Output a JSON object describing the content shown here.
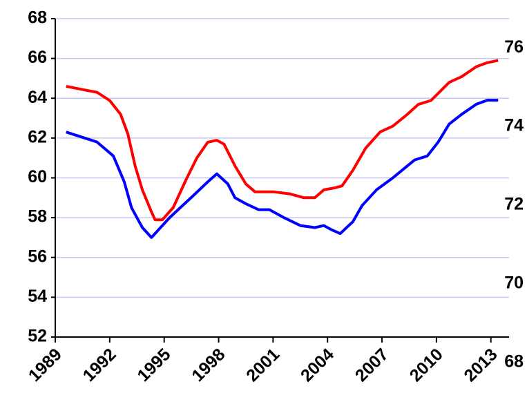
{
  "chart_data": {
    "type": "line",
    "xlim": [
      1989,
      2014
    ],
    "xticks": [
      1989,
      1992,
      1995,
      1998,
      2001,
      2004,
      2007,
      2010,
      2013
    ],
    "ylim": [
      52,
      68
    ],
    "yticks": [
      52,
      54,
      56,
      58,
      60,
      62,
      64,
      66,
      68
    ],
    "y2lim": [
      68.65,
      76.74
    ],
    "y2ticks": [
      68,
      70,
      72,
      74,
      76
    ],
    "grid": true,
    "grid_color": "#c8c8f0",
    "series": [
      {
        "color": "#0000ff",
        "x": [
          1989.6,
          1991.3,
          1992.2,
          1992.8,
          1993.2,
          1993.8,
          1994.3,
          1995.3,
          1996.6,
          1997.4,
          1997.9,
          1998.5,
          1998.9,
          1999.5,
          2000.2,
          2000.8,
          2001.6,
          2002.5,
          2003.3,
          2003.8,
          2004.2,
          2004.7,
          2005.4,
          2005.9,
          2006.7,
          2007.6,
          2008.8,
          2009.5,
          2010.1,
          2010.7,
          2011.4,
          2012.2,
          2012.8,
          2013.4
        ],
        "values": [
          62.3,
          61.8,
          61.1,
          59.8,
          58.5,
          57.5,
          57.0,
          58.0,
          59.1,
          59.8,
          60.2,
          59.7,
          59.0,
          58.7,
          58.4,
          58.4,
          58.0,
          57.6,
          57.5,
          57.6,
          57.4,
          57.2,
          57.8,
          58.6,
          59.4,
          60.0,
          60.9,
          61.1,
          61.8,
          62.7,
          63.2,
          63.7,
          63.9,
          63.9
        ]
      },
      {
        "color": "#ff0000",
        "axis": "y2",
        "x": [
          1989.6,
          1990.7,
          1991.3,
          1992.0,
          1992.6,
          1993.0,
          1993.4,
          1993.8,
          1994.3,
          1994.5,
          1994.9,
          1995.5,
          1996.2,
          1996.8,
          1997.4,
          1997.9,
          1998.3,
          1998.9,
          1999.5,
          2000.0,
          2001.0,
          2001.9,
          2002.7,
          2003.3,
          2003.8,
          2004.4,
          2004.8,
          2005.4,
          2006.1,
          2006.9,
          2007.6,
          2008.4,
          2009.0,
          2009.7,
          2010.7,
          2011.4,
          2012.2,
          2012.8,
          2013.4
        ],
        "values": [
          75.02,
          74.92,
          74.87,
          74.66,
          74.31,
          73.81,
          73.0,
          72.39,
          71.83,
          71.63,
          71.63,
          71.94,
          72.64,
          73.2,
          73.6,
          73.65,
          73.55,
          73.0,
          72.54,
          72.34,
          72.34,
          72.29,
          72.19,
          72.19,
          72.39,
          72.44,
          72.49,
          72.89,
          73.45,
          73.86,
          74.01,
          74.31,
          74.56,
          74.66,
          75.12,
          75.27,
          75.52,
          75.62,
          75.68
        ]
      }
    ]
  }
}
